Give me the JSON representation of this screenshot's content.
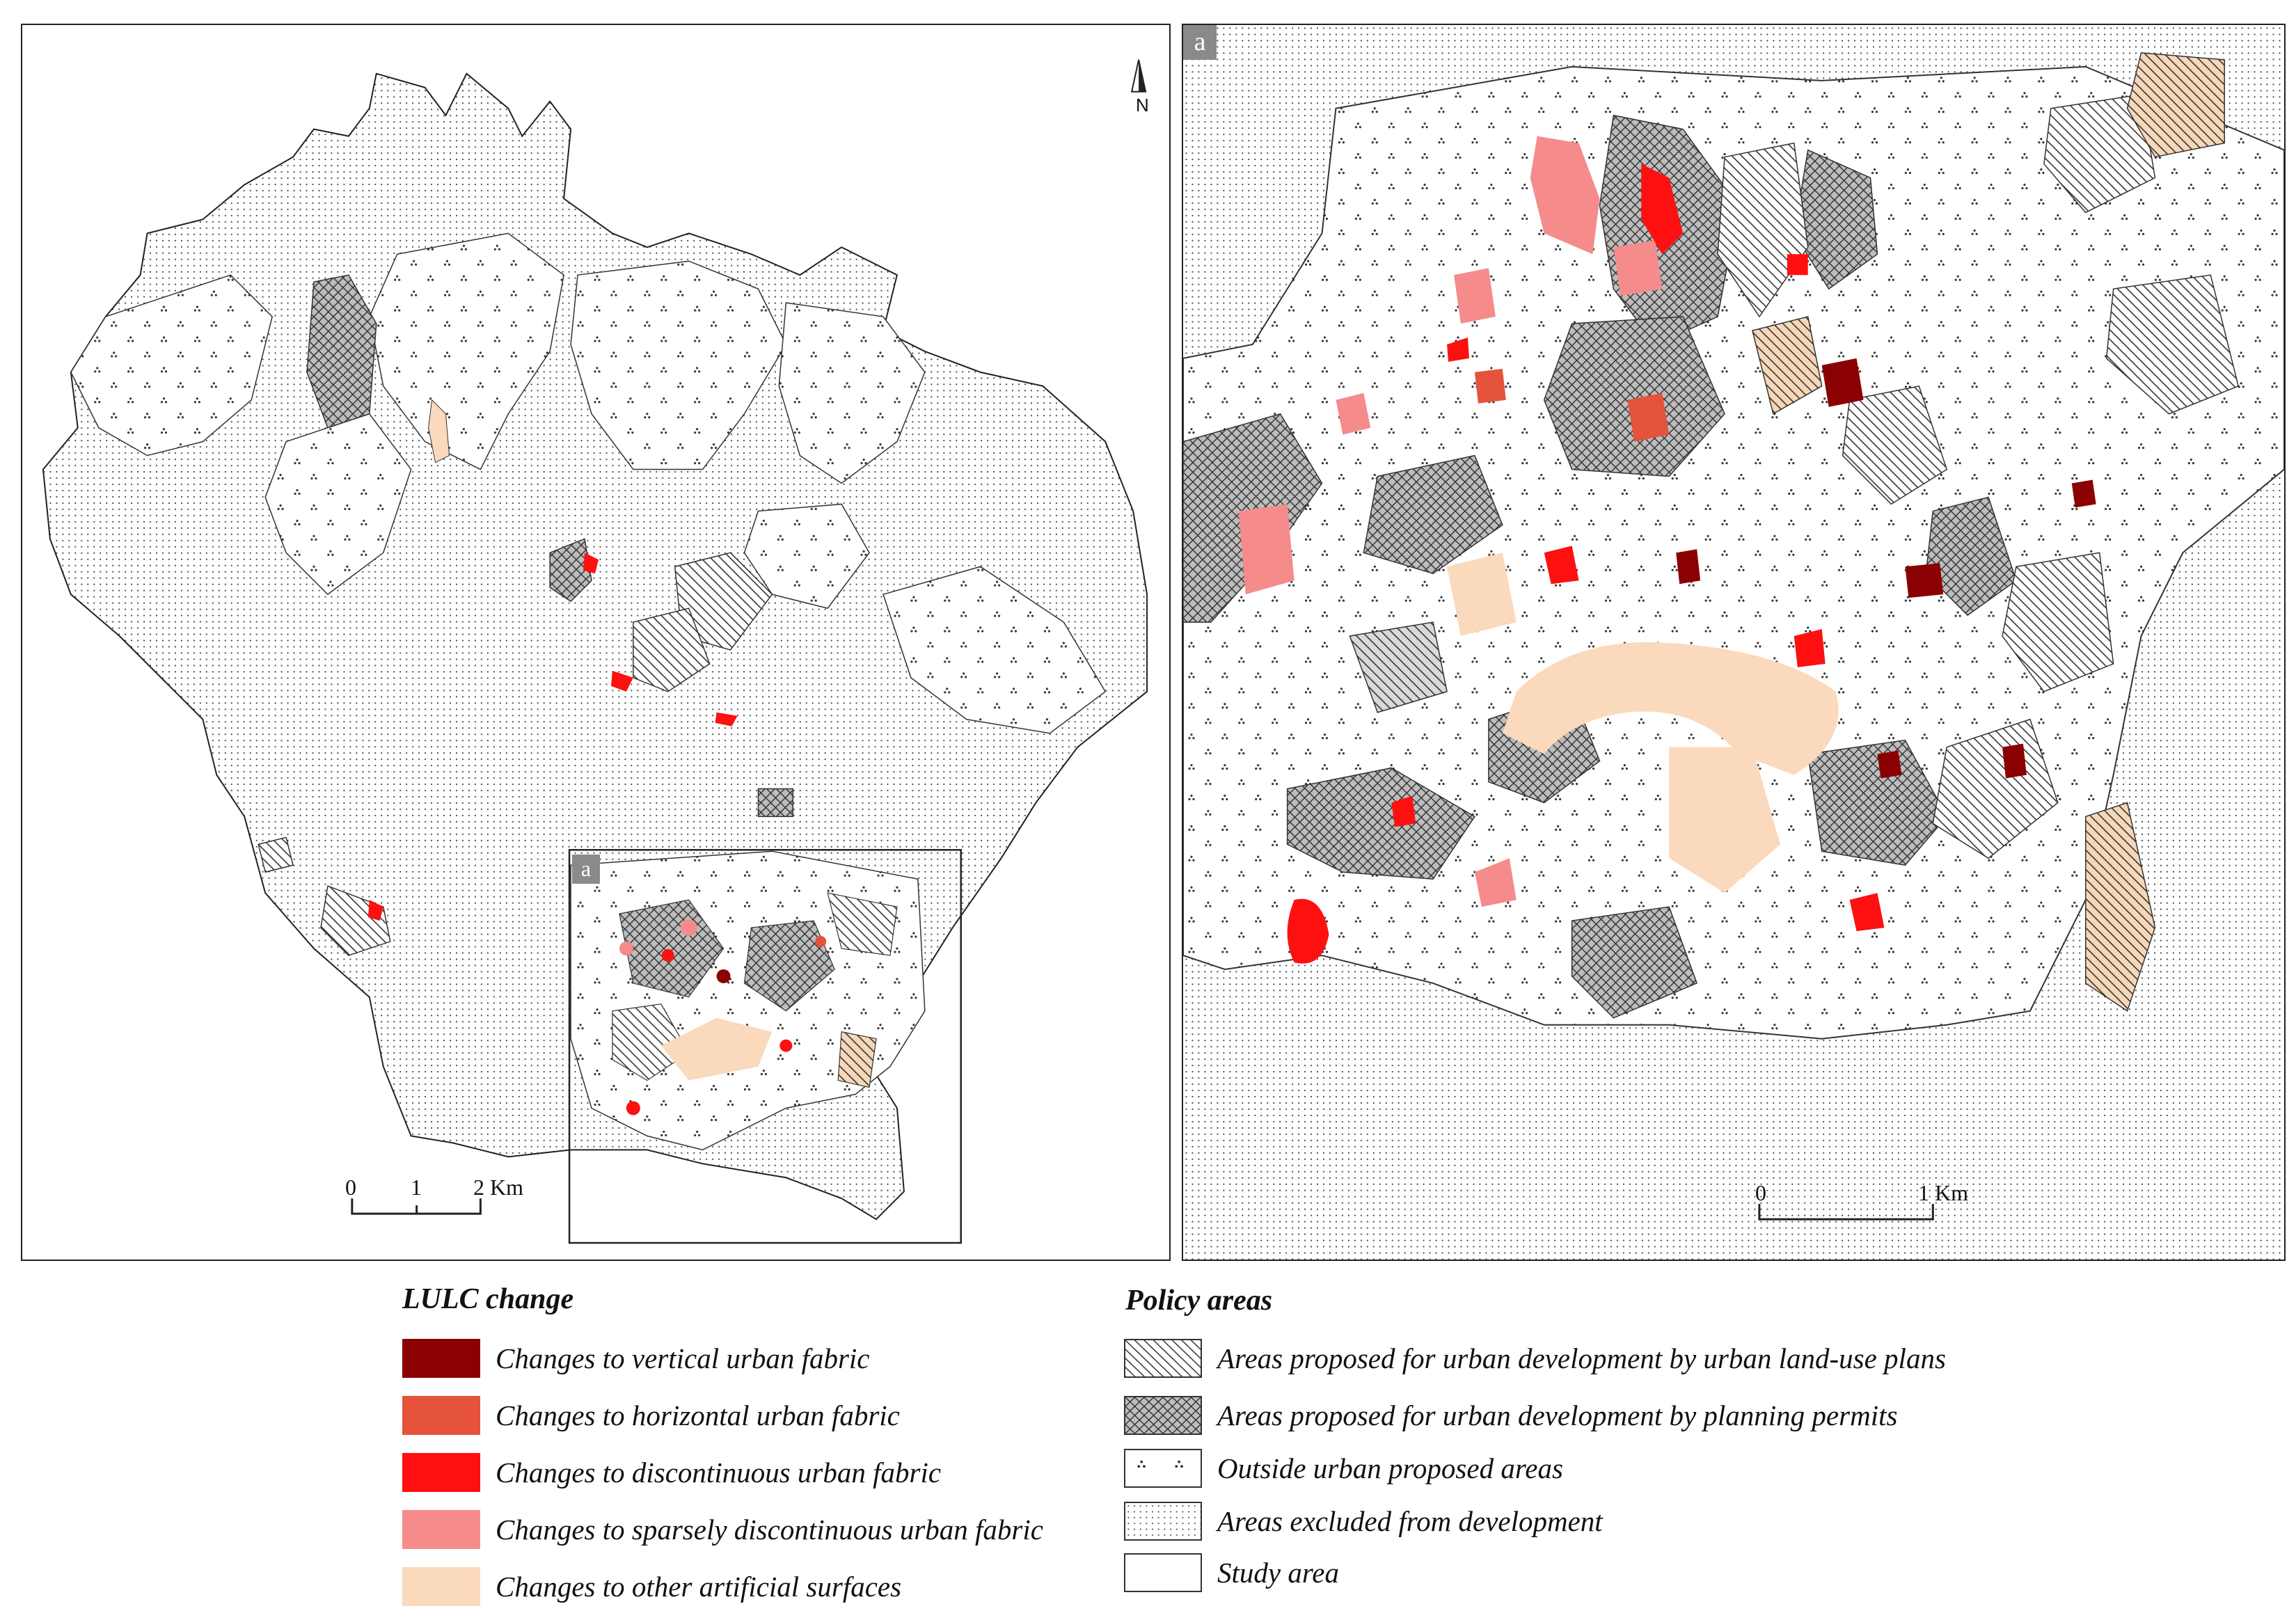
{
  "maps": {
    "left": {
      "inset_label": "a",
      "scale": {
        "ticks": [
          "0",
          "1",
          "2 Km"
        ]
      },
      "north_label": "N"
    },
    "right": {
      "inset_label": "a",
      "scale": {
        "ticks": [
          "0",
          "1 Km"
        ]
      }
    }
  },
  "legend": {
    "lulc": {
      "title": "LULC change",
      "items": [
        {
          "label": "Changes to vertical urban fabric",
          "color": "#8b0000"
        },
        {
          "label": "Changes to horizontal urban fabric",
          "color": "#e5533a"
        },
        {
          "label": "Changes to discontinuous urban fabric",
          "color": "#ff1010"
        },
        {
          "label": "Changes to sparsely discontinuous urban fabric",
          "color": "#f58b8b"
        },
        {
          "label": "Changes to other artificial surfaces",
          "color": "#fbd9bc"
        }
      ]
    },
    "policy": {
      "title": "Policy areas",
      "items": [
        {
          "label": "Areas proposed for urban development by urban land-use plans",
          "pattern": "diagonal-hatch"
        },
        {
          "label": "Areas proposed for urban development by planning permits",
          "pattern": "cross-hatch"
        },
        {
          "label": "Outside urban proposed areas",
          "pattern": "triangle-dots"
        },
        {
          "label": "Areas excluded from development",
          "pattern": "fine-dots"
        },
        {
          "label": "Study area",
          "pattern": "blank"
        }
      ]
    }
  }
}
